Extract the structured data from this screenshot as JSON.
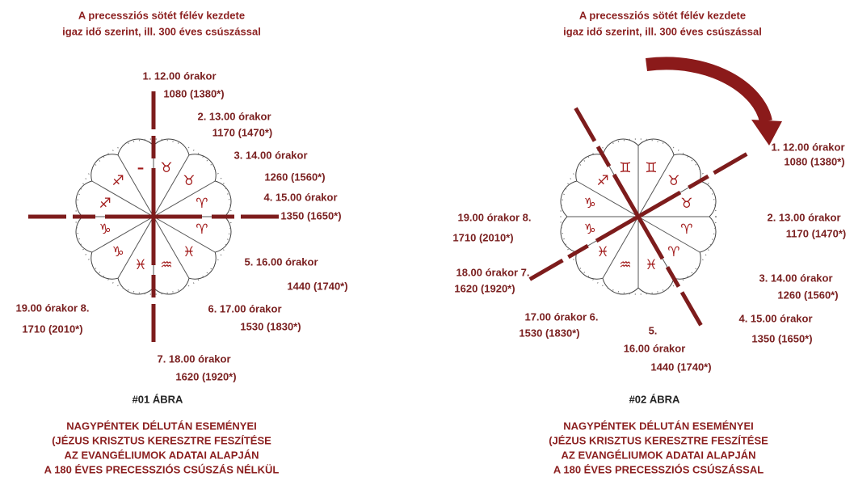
{
  "figures": [
    {
      "title": [
        "A precessziós sötét félév kezdete",
        "igaz idő szerint, ill. 300 éves csúszással"
      ],
      "labels": [
        {
          "lines": [
            "1. 12.00 órakor",
            "1080 (1380*)"
          ]
        },
        {
          "lines": [
            "2. 13.00 órakor",
            "1170 (1470*)"
          ]
        },
        {
          "lines": [
            "3. 14.00 órakor",
            "1260 (1560*)"
          ]
        },
        {
          "lines": [
            "4. 15.00 órakor",
            "1350 (1650*)"
          ]
        },
        {
          "lines": [
            "5. 16.00 órakor",
            "1440 (1740*)"
          ]
        },
        {
          "lines": [
            "6. 17.00 órakor",
            "1530 (1830*)"
          ]
        },
        {
          "lines": [
            "7. 18.00 órakor",
            "1620 (1920*)"
          ]
        },
        {
          "lines": [
            "19.00 órakor    8.",
            "1710 (2010*)"
          ]
        }
      ],
      "signs": [
        "♉",
        "♉",
        "♈",
        "♈",
        "♓",
        "♒",
        "♓",
        "♑",
        "♑",
        "♐",
        "♐",
        "–"
      ],
      "caption": "#01 ÁBRA",
      "description": [
        "NAGYPÉNTEK DÉLUTÁN ESEMÉNYEI",
        "(JÉZUS KRISZTUS KERESZTRE FESZÍTÉSE",
        "AZ EVANGÉLIUMOK ADATAI ALAPJÁN",
        "A 180 ÉVES PRECESSZIÓS CSÚSZÁS NÉLKÜL"
      ]
    },
    {
      "title": [
        "A precessziós sötét félév kezdete",
        "igaz idő szerint, ill. 300 éves csúszással"
      ],
      "labels": [
        {
          "lines": [
            "1. 12.00 órakor",
            "1080 (1380*)"
          ]
        },
        {
          "lines": [
            "2. 13.00 órakor",
            "1170 (1470*)"
          ]
        },
        {
          "lines": [
            "3. 14.00 órakor",
            "1260 (1560*)"
          ]
        },
        {
          "lines": [
            "4. 15.00 órakor",
            "1350 (1650*)"
          ]
        },
        {
          "lines": [
            "5.",
            "16.00 órakor",
            "1440 (1740*)"
          ]
        },
        {
          "lines": [
            "17.00 órakor 6.",
            "1530 (1830*)"
          ]
        },
        {
          "lines": [
            "18.00 órakor 7.",
            "1620 (1920*)"
          ]
        },
        {
          "lines": [
            "19.00 órakor  8.",
            "1710 (2010*)"
          ]
        }
      ],
      "signs": [
        "♊",
        "♊",
        "♉",
        "♉",
        "♈",
        "♈",
        "♓",
        "♒",
        "♓",
        "♑",
        "♑",
        "♐"
      ],
      "caption": "#02 ÁBRA",
      "description": [
        "NAGYPÉNTEK DÉLUTÁN ESEMÉNYEI",
        "(JÉZUS KRISZTUS KERESZTRE FESZÍTÉSE",
        "AZ EVANGÉLIUMOK ADATAI ALAPJÁN",
        "A 180 ÉVES PRECESSZIÓS CSÚSZÁSSAL"
      ]
    }
  ]
}
